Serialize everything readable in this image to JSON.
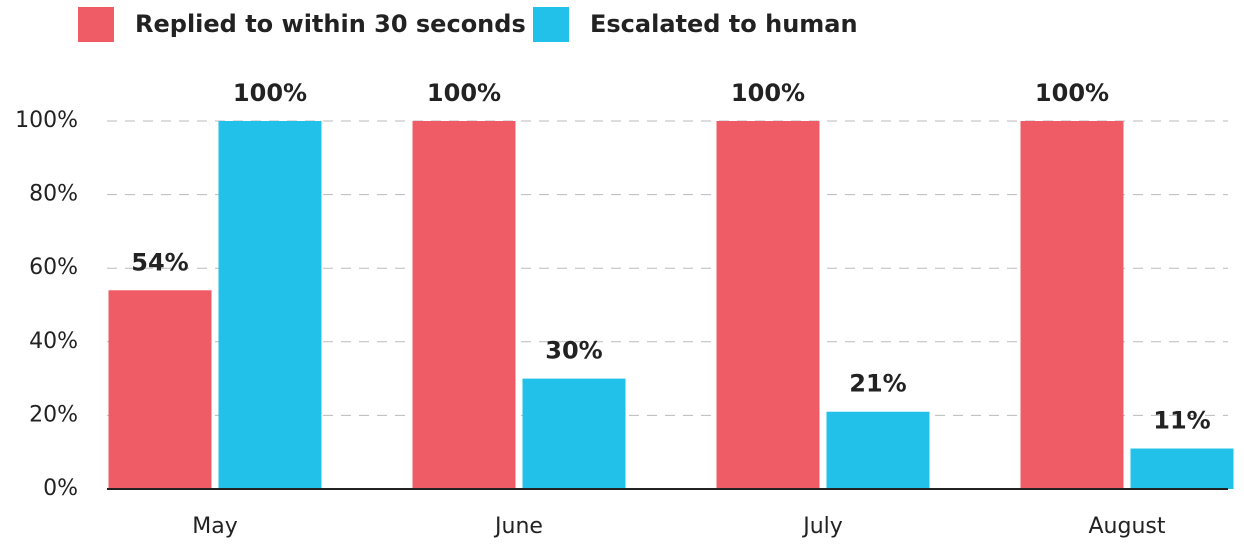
{
  "chart_data": {
    "type": "bar",
    "categories": [
      "May",
      "June",
      "July",
      "August"
    ],
    "series": [
      {
        "name": "Replied to within 30 seconds",
        "color": "#f05c66",
        "values": [
          54,
          100,
          100,
          100
        ],
        "value_labels": [
          "54%",
          "100%",
          "100%",
          "100%"
        ]
      },
      {
        "name": "Escalated to human",
        "color": "#22c1ea",
        "values": [
          100,
          30,
          21,
          11
        ],
        "value_labels": [
          "100%",
          "30%",
          "21%",
          "11%"
        ]
      }
    ],
    "ylim": [
      0,
      100
    ],
    "yticks": [
      {
        "value": 0,
        "label": "0%"
      },
      {
        "value": 20,
        "label": "20%"
      },
      {
        "value": 40,
        "label": "40%"
      },
      {
        "value": 60,
        "label": "60%"
      },
      {
        "value": 80,
        "label": "80%"
      },
      {
        "value": 100,
        "label": "100%"
      }
    ],
    "grid": true
  }
}
